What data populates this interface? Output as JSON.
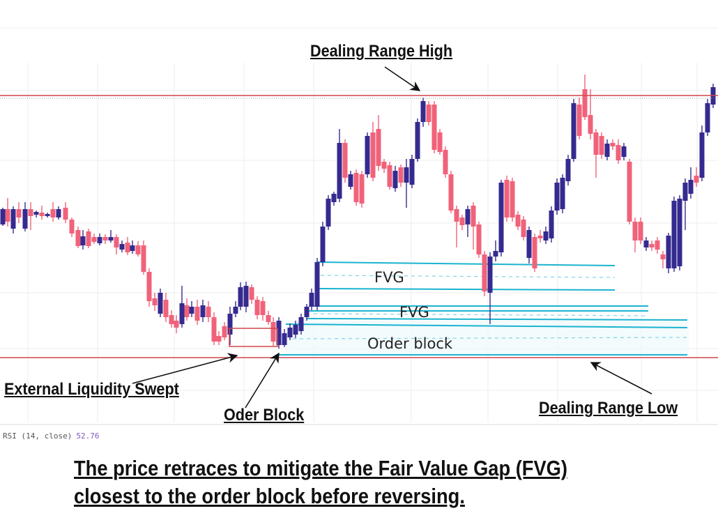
{
  "annotations": {
    "dealing_range_high": "Dealing Range High",
    "external_liquidity": "External Liquidity Swept",
    "order_block_arrow": "Oder Block",
    "dealing_range_low": "Dealing Range  Low",
    "fvg_upper": "FVG",
    "fvg_lower": "FVG",
    "order_block_zone": "Order block"
  },
  "rsi": {
    "label": "RSI (14, close)",
    "value": "52.76"
  },
  "caption": {
    "line1": "The price retraces to mitigate the Fair Value Gap (FVG)",
    "line2": "closest to the order block before reversing."
  },
  "colors": {
    "bull": "#352a8f",
    "bear": "#f0627a",
    "level_line": "#d0454d",
    "zone_line": "#1ab3cf",
    "zone_dash": "#7fd3e6",
    "grid": "#eeeeee"
  },
  "chart_data": {
    "type": "candlestick",
    "title": "",
    "grid": true,
    "levels": {
      "dealing_range_high": 0,
      "dealing_range_low": 0
    },
    "candles": []
  }
}
